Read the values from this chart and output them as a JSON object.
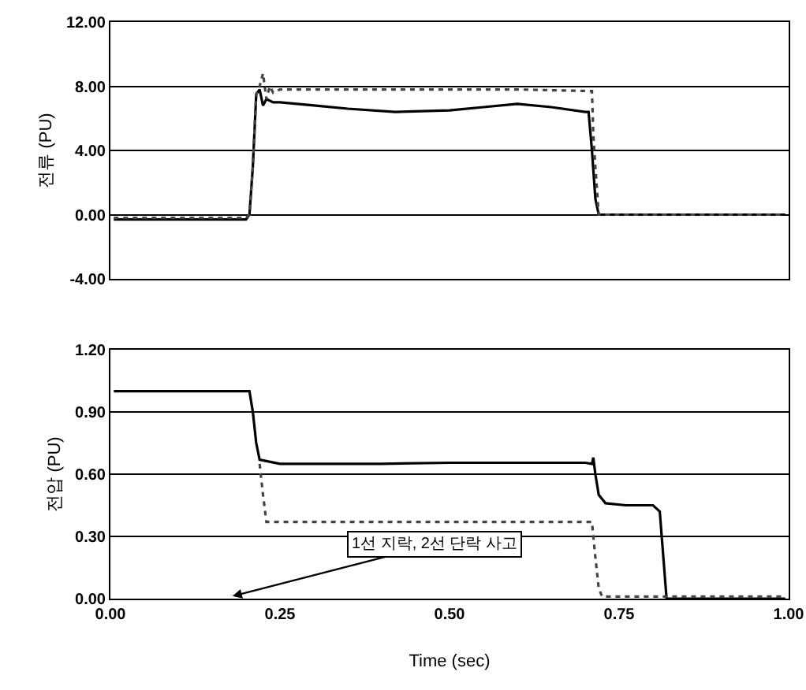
{
  "chart_data": [
    {
      "type": "line",
      "ylabel": "전류 (PU)",
      "xlim": [
        0,
        1
      ],
      "ylim": [
        -4,
        12
      ],
      "yticks": [
        {
          "value": -4,
          "label": "-4.00"
        },
        {
          "value": 0,
          "label": "0.00"
        },
        {
          "value": 4,
          "label": "4.00"
        },
        {
          "value": 8,
          "label": "8.00"
        },
        {
          "value": 12,
          "label": "12.00"
        }
      ],
      "grid": "y",
      "tick_labels": "y",
      "marker": "none",
      "series": [
        {
          "color": "#000000",
          "line_style": "solid",
          "x": [
            0.005,
            0.2,
            0.205,
            0.21,
            0.215,
            0.22,
            0.225,
            0.23,
            0.24,
            0.25,
            0.3,
            0.35,
            0.42,
            0.5,
            0.55,
            0.6,
            0.65,
            0.7,
            0.705,
            0.71,
            0.715,
            0.72,
            0.8,
            0.995
          ],
          "values": [
            -0.3,
            -0.3,
            0,
            3,
            7.5,
            7.8,
            6.8,
            7.2,
            7.0,
            7.0,
            6.8,
            6.6,
            6.4,
            6.5,
            6.7,
            6.9,
            6.7,
            6.4,
            6.4,
            4.0,
            1.0,
            0,
            0,
            0
          ]
        },
        {
          "color": "#444444",
          "line_style": "dotted",
          "x": [
            0.005,
            0.2,
            0.205,
            0.21,
            0.215,
            0.22,
            0.225,
            0.23,
            0.235,
            0.24,
            0.25,
            0.4,
            0.6,
            0.71,
            0.712,
            0.715,
            0.72,
            0.995
          ],
          "values": [
            -0.2,
            -0.2,
            0,
            3,
            7.5,
            8.0,
            8.8,
            7.2,
            8.0,
            7.6,
            7.8,
            7.8,
            7.8,
            7.7,
            5,
            3,
            0,
            0
          ]
        }
      ]
    },
    {
      "type": "line",
      "xlabel": "Time (sec)",
      "ylabel": "전압 (PU)",
      "xlim": [
        0,
        1
      ],
      "xticks": [
        {
          "value": 0,
          "label": "0.00"
        },
        {
          "value": 0.25,
          "label": "0.25"
        },
        {
          "value": 0.5,
          "label": "0.50"
        },
        {
          "value": 0.75,
          "label": "0.75"
        },
        {
          "value": 1,
          "label": "1.00"
        }
      ],
      "ylim": [
        0,
        1.2
      ],
      "yticks": [
        {
          "value": 0,
          "label": "0.00"
        },
        {
          "value": 0.3,
          "label": "0.30"
        },
        {
          "value": 0.6,
          "label": "0.60"
        },
        {
          "value": 0.9,
          "label": "0.90"
        },
        {
          "value": 1.2,
          "label": "1.20"
        }
      ],
      "grid": "y",
      "marker": "none",
      "annotations": [
        "1선 지락, 2선 단락 사고"
      ],
      "series": [
        {
          "color": "#000000",
          "line_style": "solid",
          "x": [
            0.005,
            0.2,
            0.205,
            0.21,
            0.215,
            0.22,
            0.25,
            0.4,
            0.5,
            0.6,
            0.7,
            0.71,
            0.712,
            0.715,
            0.72,
            0.73,
            0.76,
            0.8,
            0.81,
            0.82,
            0.995
          ],
          "values": [
            1.0,
            1.0,
            1.0,
            0.9,
            0.75,
            0.67,
            0.65,
            0.65,
            0.655,
            0.655,
            0.655,
            0.65,
            0.68,
            0.6,
            0.5,
            0.46,
            0.45,
            0.45,
            0.42,
            0,
            0
          ]
        },
        {
          "color": "#444444",
          "line_style": "dotted",
          "x": [
            0.22,
            0.225,
            0.23,
            0.25,
            0.5,
            0.71,
            0.712,
            0.715,
            0.72,
            0.725,
            0.995
          ],
          "values": [
            0.65,
            0.5,
            0.37,
            0.37,
            0.37,
            0.37,
            0.3,
            0.2,
            0.05,
            0.01,
            0.01
          ]
        }
      ]
    }
  ]
}
